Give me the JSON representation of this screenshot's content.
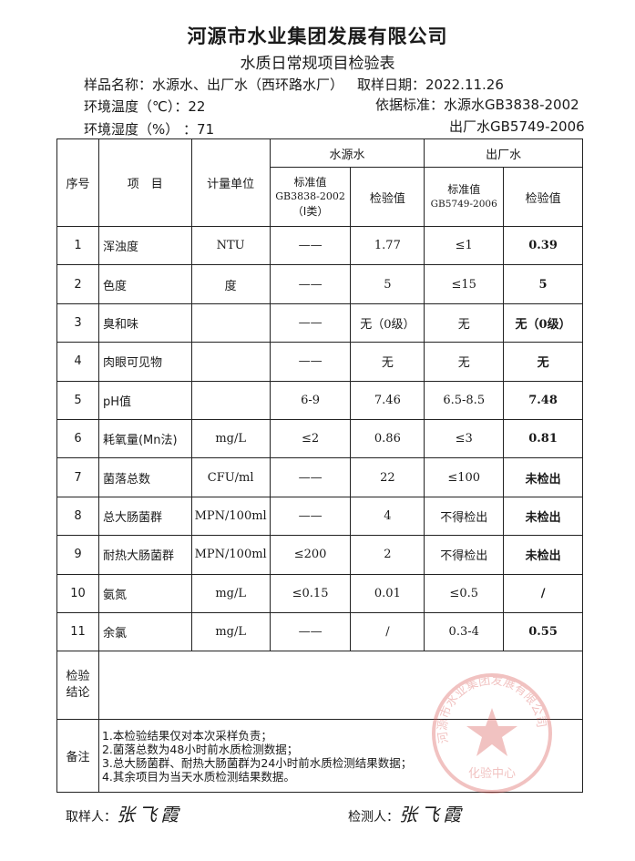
{
  "header": {
    "company": "河源市水业集团发展有限公司",
    "form_title": "水质日常规项目检验表",
    "sample_name": "样品名称：水源水、出厂水（西环路水厂）",
    "sample_date": "取样日期：2022.11.26",
    "temperature": "环境温度（℃）：22",
    "basis_line1": "依据标准：水源水GB3838-2002",
    "humidity": "环境湿度（%）  ：71",
    "basis_line2": "出厂水GB5749-2006"
  },
  "table": {
    "col_no": "序号",
    "col_item": "项　目",
    "col_unit": "计量单位",
    "group_source": "水源水",
    "group_plant": "出厂水",
    "source_std": "标准值",
    "source_std_code": "GB3838-2002",
    "source_std_class": "（Ⅰ类）",
    "source_val": "检验值",
    "plant_std": "标准值",
    "plant_std_code": "GB5749-2006",
    "plant_val": "检验值",
    "rows": [
      {
        "no": "1",
        "item": "浑浊度",
        "unit": "NTU",
        "s_std": "——",
        "s_val": "1.77",
        "p_std": "≤1",
        "p_val": "0.39"
      },
      {
        "no": "2",
        "item": "色度",
        "unit": "度",
        "s_std": "——",
        "s_val": "5",
        "p_std": "≤15",
        "p_val": "5"
      },
      {
        "no": "3",
        "item": "臭和味",
        "unit": "",
        "s_std": "——",
        "s_val": "无（0级）",
        "p_std": "无",
        "p_val": "无（0级）"
      },
      {
        "no": "4",
        "item": "肉眼可见物",
        "unit": "",
        "s_std": "——",
        "s_val": "无",
        "p_std": "无",
        "p_val": "无"
      },
      {
        "no": "5",
        "item": "pH值",
        "unit": "",
        "s_std": "6-9",
        "s_val": "7.46",
        "p_std": "6.5-8.5",
        "p_val": "7.48"
      },
      {
        "no": "6",
        "item": "耗氧量(Mn法)",
        "unit": "mg/L",
        "s_std": "≤2",
        "s_val": "0.86",
        "p_std": "≤3",
        "p_val": "0.81"
      },
      {
        "no": "7",
        "item": "菌落总数",
        "unit": "CFU/ml",
        "s_std": "——",
        "s_val": "22",
        "p_std": "≤100",
        "p_val": "未检出"
      },
      {
        "no": "8",
        "item": "总大肠菌群",
        "unit": "MPN/100ml",
        "s_std": "——",
        "s_val": "4",
        "p_std": "不得检出",
        "p_val": "未检出"
      },
      {
        "no": "9",
        "item": "耐热大肠菌群",
        "unit": "MPN/100ml",
        "s_std": "≤200",
        "s_val": "2",
        "p_std": "不得检出",
        "p_val": "未检出"
      },
      {
        "no": "10",
        "item": "氨氮",
        "unit": "mg/L",
        "s_std": "≤0.15",
        "s_val": "0.01",
        "p_std": "≤0.5",
        "p_val": "/"
      },
      {
        "no": "11",
        "item": "余氯",
        "unit": "mg/L",
        "s_std": "——",
        "s_val": "/",
        "p_std": "0.3-4",
        "p_val": "0.55"
      }
    ],
    "conclusion_label": "检验结论",
    "conclusion_value": "",
    "remarks_label": "备注",
    "remarks": [
      "1.本检验结果仅对本次采样负责；",
      "2.菌落总数为48小时前水质检测数据；",
      "3.总大肠菌群、耐热大肠菌群为24小时前水质检测结果数据；",
      "4.其余项目为当天水质检测结果数据。"
    ]
  },
  "footer": {
    "sampler_label": "取样人：",
    "sampler_signature": "张飞霞",
    "tester_label": "检测人：",
    "tester_signature": "张飞霞"
  },
  "seal": {
    "text": "河源市水业集团发展有限公司",
    "subtext": "化验中心",
    "color": "#d9534f"
  }
}
